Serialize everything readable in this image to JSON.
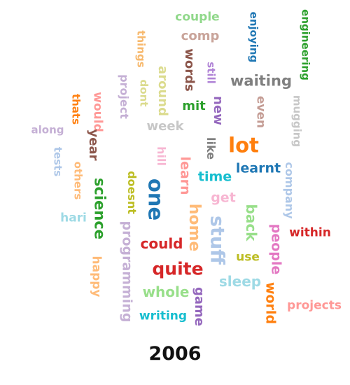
{
  "year": "2006",
  "words": [
    {
      "text": "couple",
      "color": "#90d88a",
      "vertical": false
    },
    {
      "text": "comp",
      "color": "#c9a49a",
      "vertical": false
    },
    {
      "text": "enjoying",
      "color": "#1f77b4",
      "vertical": true
    },
    {
      "text": "engineering",
      "color": "#2ca02c",
      "vertical": true
    },
    {
      "text": "things",
      "color": "#f7b96e",
      "vertical": true
    },
    {
      "text": "words",
      "color": "#8c564b",
      "vertical": true
    },
    {
      "text": "still",
      "color": "#b083d6",
      "vertical": true
    },
    {
      "text": "around",
      "color": "#dbdb8d",
      "vertical": true
    },
    {
      "text": "waiting",
      "color": "#7f7f7f",
      "vertical": false
    },
    {
      "text": "project",
      "color": "#c5b0d5",
      "vertical": true
    },
    {
      "text": "dont",
      "color": "#dbdb8d",
      "vertical": true
    },
    {
      "text": "mit",
      "color": "#2ca02c",
      "vertical": false
    },
    {
      "text": "new",
      "color": "#9467bd",
      "vertical": true
    },
    {
      "text": "even",
      "color": "#c49c94",
      "vertical": true
    },
    {
      "text": "mugging",
      "color": "#c7c7c7",
      "vertical": true
    },
    {
      "text": "would",
      "color": "#ff9896",
      "vertical": true
    },
    {
      "text": "thats",
      "color": "#ff7f0e",
      "vertical": true
    },
    {
      "text": "week",
      "color": "#c7c7c7",
      "vertical": false
    },
    {
      "text": "along",
      "color": "#c5b0d5",
      "vertical": false
    },
    {
      "text": "year",
      "color": "#8c564b",
      "vertical": true
    },
    {
      "text": "lot",
      "color": "#ff7f0e",
      "vertical": false
    },
    {
      "text": "like",
      "color": "#7f7f7f",
      "vertical": true
    },
    {
      "text": "hill",
      "color": "#f7b6d2",
      "vertical": true
    },
    {
      "text": "tests",
      "color": "#aec7e8",
      "vertical": true
    },
    {
      "text": "learnt",
      "color": "#1f77b4",
      "vertical": false
    },
    {
      "text": "company",
      "color": "#aec7e8",
      "vertical": true
    },
    {
      "text": "others",
      "color": "#ffbb78",
      "vertical": true
    },
    {
      "text": "science",
      "color": "#2ca02c",
      "vertical": true
    },
    {
      "text": "learn",
      "color": "#ff9896",
      "vertical": true
    },
    {
      "text": "time",
      "color": "#17becf",
      "vertical": false
    },
    {
      "text": "doesnt",
      "color": "#bcbd22",
      "vertical": true
    },
    {
      "text": "one",
      "color": "#1f77b4",
      "vertical": true
    },
    {
      "text": "get",
      "color": "#f7b6d2",
      "vertical": false
    },
    {
      "text": "back",
      "color": "#98df8a",
      "vertical": true
    },
    {
      "text": "hari",
      "color": "#9edae5",
      "vertical": false
    },
    {
      "text": "home",
      "color": "#ffbb78",
      "vertical": true
    },
    {
      "text": "stuff",
      "color": "#aec7e8",
      "vertical": true
    },
    {
      "text": "within",
      "color": "#d62728",
      "vertical": false
    },
    {
      "text": "people",
      "color": "#e377c2",
      "vertical": true
    },
    {
      "text": "programming",
      "color": "#c5b0d5",
      "vertical": true
    },
    {
      "text": "could",
      "color": "#d62728",
      "vertical": false
    },
    {
      "text": "use",
      "color": "#bcbd22",
      "vertical": false
    },
    {
      "text": "quite",
      "color": "#d62728",
      "vertical": false
    },
    {
      "text": "happy",
      "color": "#ffbb78",
      "vertical": true
    },
    {
      "text": "sleep",
      "color": "#9edae5",
      "vertical": false
    },
    {
      "text": "whole",
      "color": "#98df8a",
      "vertical": false
    },
    {
      "text": "game",
      "color": "#9467bd",
      "vertical": true
    },
    {
      "text": "world",
      "color": "#ff7f0e",
      "vertical": true
    },
    {
      "text": "projects",
      "color": "#ff9896",
      "vertical": false
    },
    {
      "text": "writing",
      "color": "#17becf",
      "vertical": false
    }
  ]
}
